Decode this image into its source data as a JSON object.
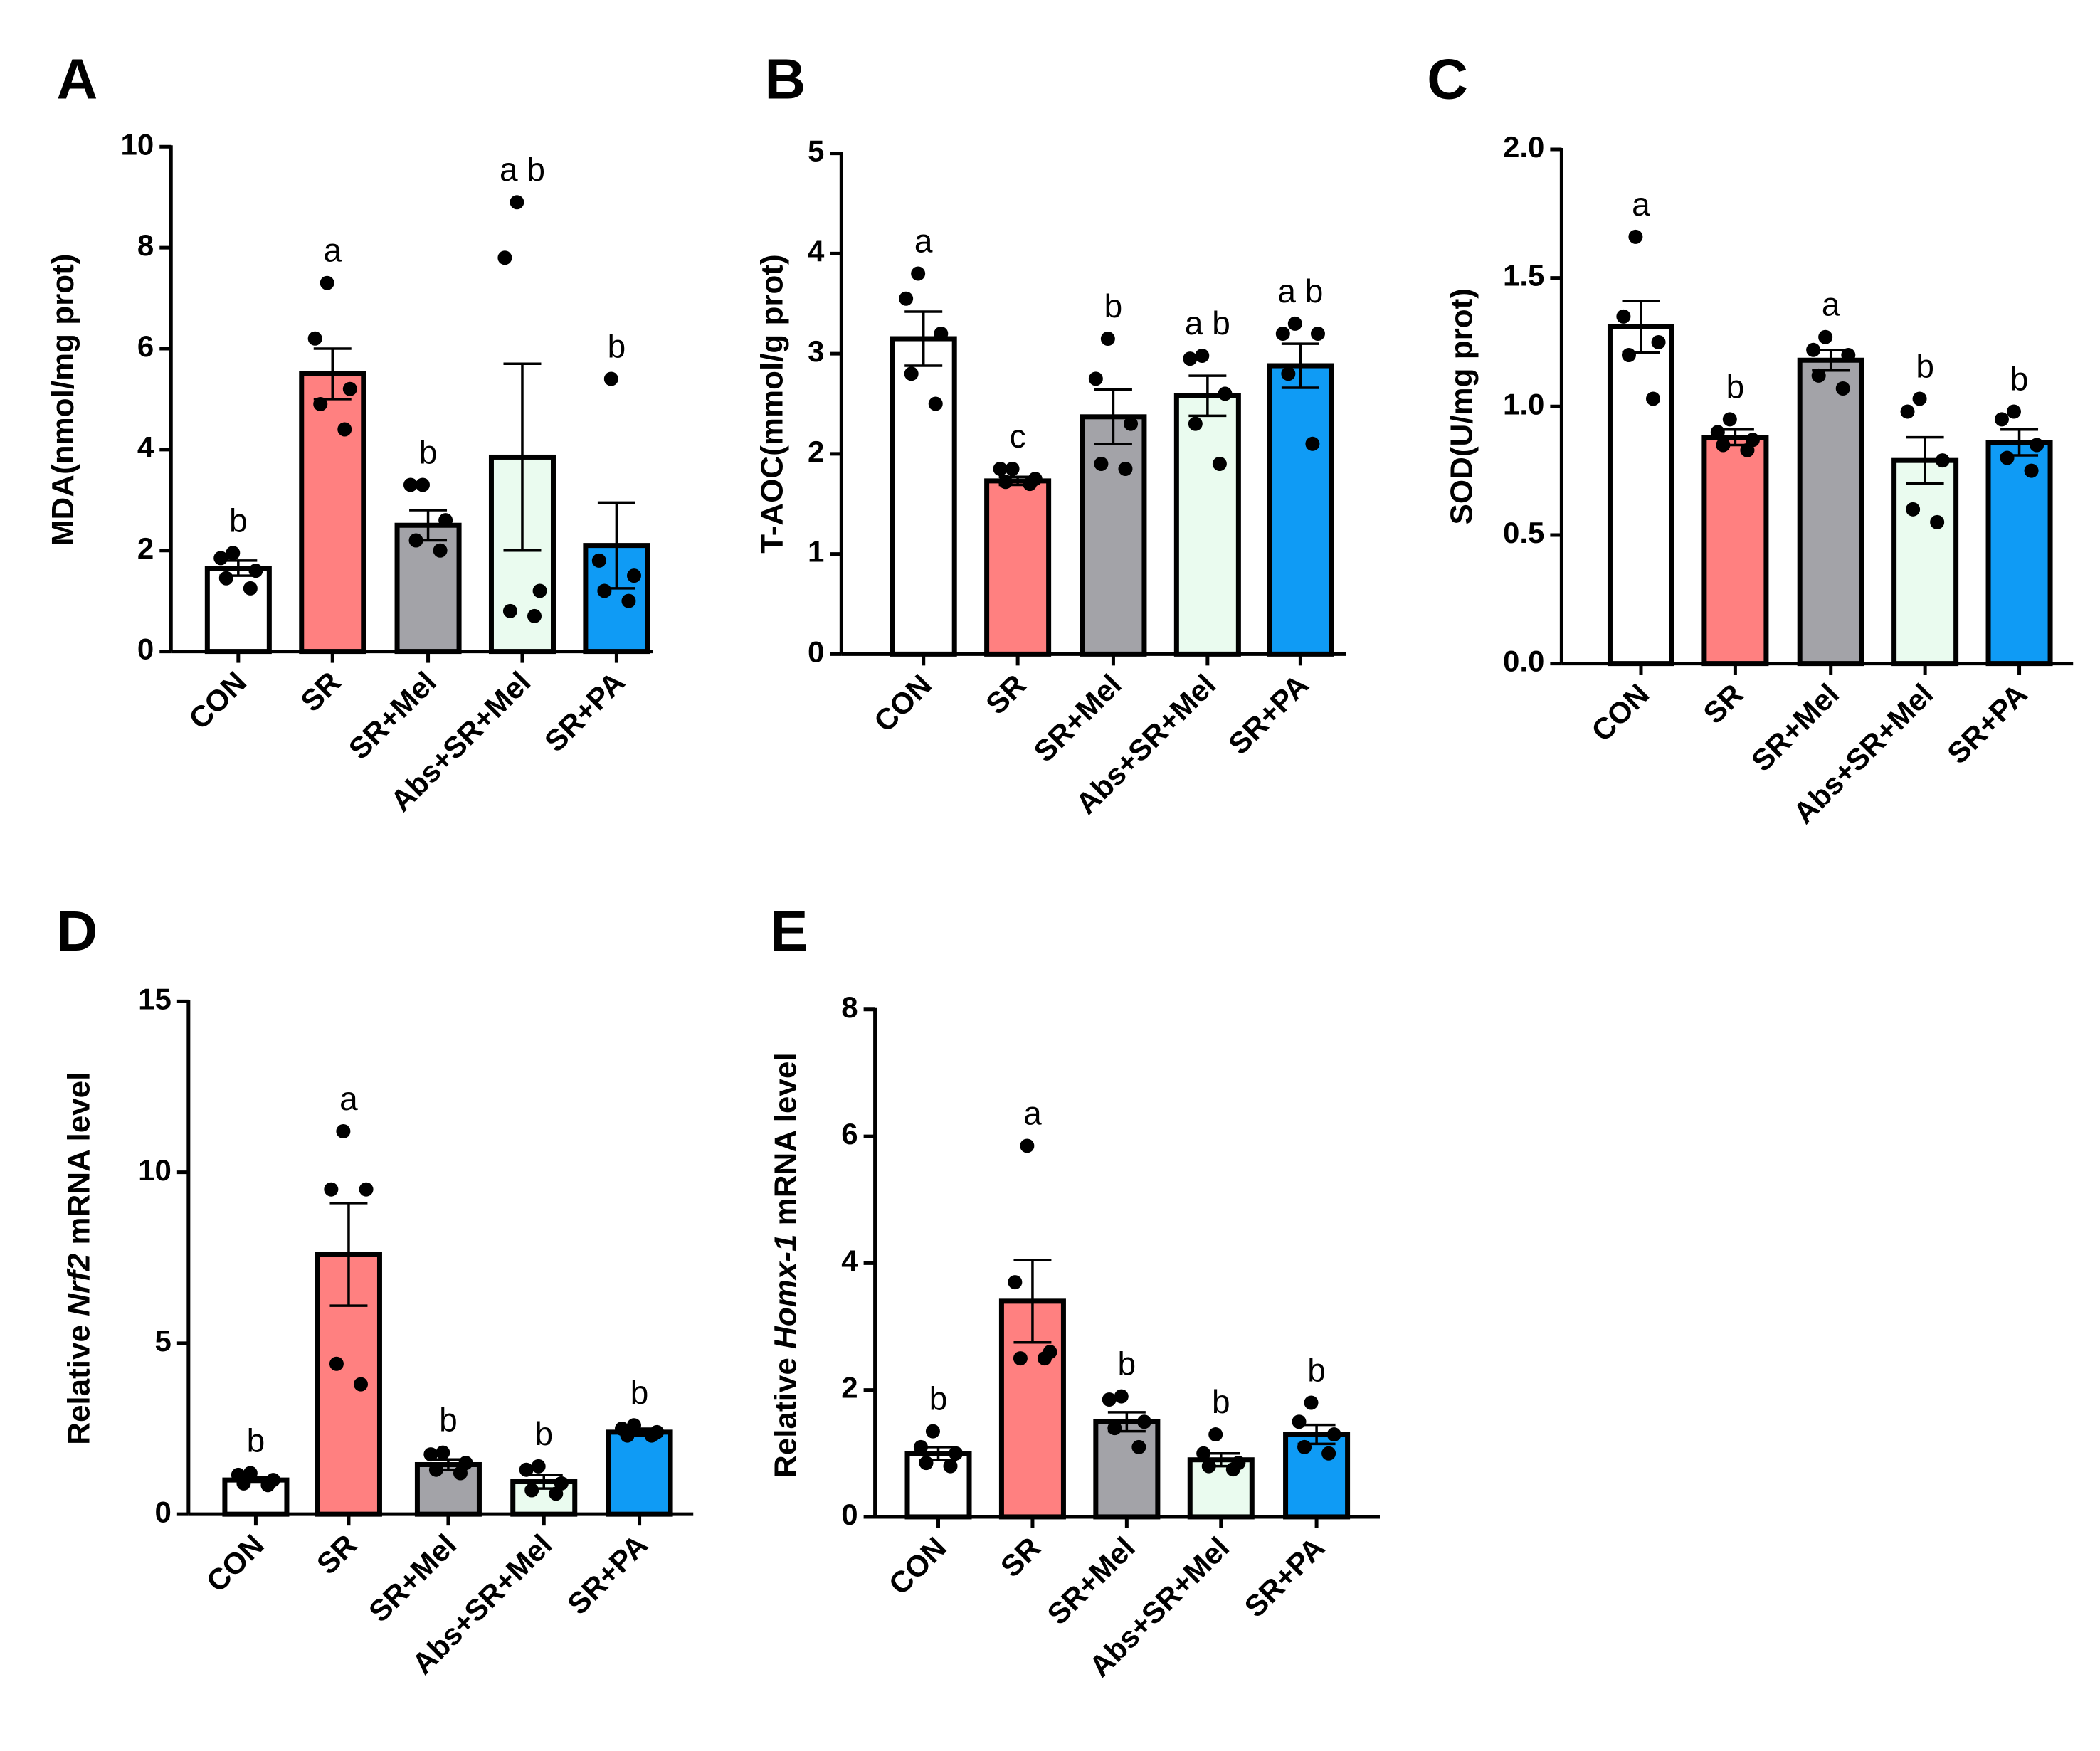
{
  "chart_data": [
    {
      "type": "bar",
      "panel": "A",
      "y_label": [
        "MDA(nmol/mg prot)"
      ],
      "categories": [
        "CON",
        "SR",
        "SR+Mel",
        "Abs+SR+Mel",
        "SR+PA"
      ],
      "colors": [
        "#ffffff",
        "#ff8080",
        "#a3a3a8",
        "#eafbef",
        "#0f9bf5"
      ],
      "values": [
        1.65,
        5.5,
        2.5,
        3.85,
        2.1
      ],
      "errors": [
        0.15,
        0.5,
        0.3,
        1.85,
        0.85
      ],
      "points": [
        [
          1.95,
          1.85,
          1.6,
          1.45,
          1.25
        ],
        [
          7.3,
          6.2,
          5.2,
          4.9,
          4.4
        ],
        [
          3.3,
          3.3,
          2.6,
          2.2,
          2.0
        ],
        [
          8.9,
          7.8,
          1.2,
          0.8,
          0.7
        ],
        [
          5.4,
          1.8,
          1.5,
          1.2,
          1.0
        ]
      ],
      "letters": [
        "b",
        "a",
        "b",
        "a b",
        "b"
      ],
      "ylim": [
        0,
        10
      ],
      "yticks": [
        0,
        2,
        4,
        6,
        8,
        10
      ]
    },
    {
      "type": "bar",
      "panel": "B",
      "y_label": [
        "T-AOC(mmol/g prot)"
      ],
      "categories": [
        "CON",
        "SR",
        "SR+Mel",
        "Abs+SR+Mel",
        "SR+PA"
      ],
      "colors": [
        "#ffffff",
        "#ff8080",
        "#a3a3a8",
        "#eafbef",
        "#0f9bf5"
      ],
      "values": [
        3.15,
        1.73,
        2.37,
        2.58,
        2.88
      ],
      "errors": [
        0.27,
        0.04,
        0.27,
        0.2,
        0.22
      ],
      "points": [
        [
          3.8,
          3.55,
          3.2,
          2.8,
          2.5
        ],
        [
          1.85,
          1.85,
          1.75,
          1.72,
          1.7
        ],
        [
          3.15,
          2.75,
          2.3,
          1.9,
          1.85
        ],
        [
          2.98,
          2.95,
          2.6,
          2.3,
          1.9
        ],
        [
          3.3,
          3.2,
          3.2,
          2.8,
          2.1
        ]
      ],
      "letters": [
        "a",
        "c",
        "b",
        "a b",
        "a b"
      ],
      "ylim": [
        0,
        5
      ],
      "yticks": [
        0,
        1,
        2,
        3,
        4,
        5
      ]
    },
    {
      "type": "bar",
      "panel": "C",
      "y_label": [
        "SOD(U/mg prot)"
      ],
      "categories": [
        "CON",
        "SR",
        "SR+Mel",
        "Abs+SR+Mel",
        "SR+PA"
      ],
      "colors": [
        "#ffffff",
        "#ff8080",
        "#a3a3a8",
        "#eafbef",
        "#0f9bf5"
      ],
      "values": [
        1.31,
        0.88,
        1.18,
        0.79,
        0.86
      ],
      "errors": [
        0.1,
        0.03,
        0.04,
        0.09,
        0.05
      ],
      "points": [
        [
          1.66,
          1.35,
          1.25,
          1.2,
          1.03
        ],
        [
          0.95,
          0.9,
          0.87,
          0.85,
          0.83
        ],
        [
          1.27,
          1.22,
          1.2,
          1.12,
          1.07
        ],
        [
          1.03,
          0.98,
          0.79,
          0.6,
          0.55
        ],
        [
          0.98,
          0.95,
          0.85,
          0.8,
          0.75
        ]
      ],
      "letters": [
        "a",
        "b",
        "a",
        "b",
        "b"
      ],
      "ylim": [
        0,
        2
      ],
      "yticks": [
        {
          "value": 0,
          "label": "0.0"
        },
        0.5,
        {
          "value": 1,
          "label": "1.0"
        },
        1.5,
        {
          "value": 2,
          "label": "2.0"
        }
      ]
    },
    {
      "type": "bar",
      "panel": "D",
      "y_label": [
        "Relative",
        "Nrf2",
        "mRNA level"
      ],
      "y_label_italic": [
        1
      ],
      "categories": [
        "CON",
        "SR",
        "SR+Mel",
        "Abs+SR+Mel",
        "SR+PA"
      ],
      "colors": [
        "#ffffff",
        "#ff8080",
        "#a3a3a8",
        "#eafbef",
        "#0f9bf5"
      ],
      "values": [
        1.0,
        7.6,
        1.45,
        0.95,
        2.4
      ],
      "errors": [
        0.07,
        1.5,
        0.15,
        0.2,
        0.1
      ],
      "points": [
        [
          1.2,
          1.15,
          1.0,
          0.9,
          0.85
        ],
        [
          11.2,
          9.5,
          9.5,
          4.4,
          3.8
        ],
        [
          1.8,
          1.75,
          1.5,
          1.3,
          1.2
        ],
        [
          1.4,
          1.3,
          0.9,
          0.7,
          0.6
        ],
        [
          2.6,
          2.5,
          2.4,
          2.3,
          2.3
        ]
      ],
      "letters": [
        "b",
        "a",
        "b",
        "b",
        "b"
      ],
      "ylim": [
        0,
        15
      ],
      "yticks": [
        0,
        5,
        10,
        15
      ]
    },
    {
      "type": "bar",
      "panel": "E",
      "y_label": [
        "Relative",
        "Homx-1",
        "mRNA level"
      ],
      "y_label_italic": [
        1
      ],
      "categories": [
        "CON",
        "SR",
        "SR+Mel",
        "Abs+SR+Mel",
        "SR+PA"
      ],
      "colors": [
        "#ffffff",
        "#ff8080",
        "#a3a3a8",
        "#eafbef",
        "#0f9bf5"
      ],
      "values": [
        1.0,
        3.4,
        1.5,
        0.9,
        1.3
      ],
      "errors": [
        0.1,
        0.65,
        0.15,
        0.1,
        0.15
      ],
      "points": [
        [
          1.35,
          1.1,
          1.0,
          0.85,
          0.8
        ],
        [
          5.85,
          3.7,
          2.6,
          2.5,
          2.5
        ],
        [
          1.9,
          1.85,
          1.5,
          1.4,
          1.1
        ],
        [
          1.3,
          1.0,
          0.85,
          0.8,
          0.75
        ],
        [
          1.8,
          1.5,
          1.3,
          1.1,
          1.0
        ]
      ],
      "letters": [
        "b",
        "a",
        "b",
        "b",
        "b"
      ],
      "ylim": [
        0,
        8
      ],
      "yticks": [
        0,
        2,
        4,
        6,
        8
      ]
    }
  ]
}
